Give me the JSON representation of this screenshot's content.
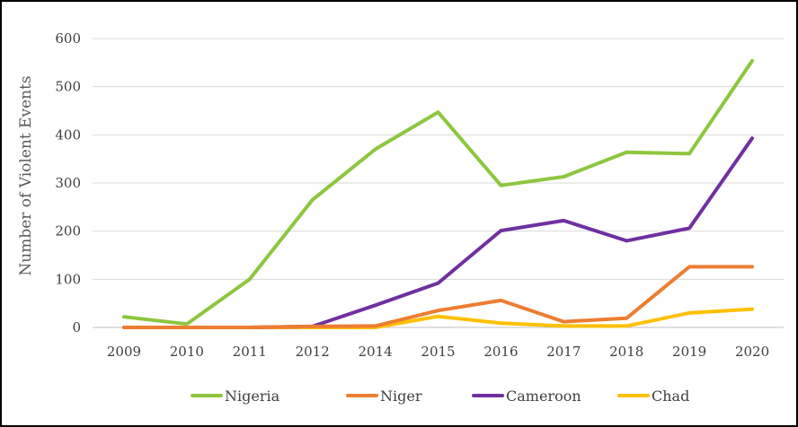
{
  "chart_data": {
    "type": "line",
    "categories": [
      "2009",
      "2010",
      "2011",
      "2012",
      "2014",
      "2015",
      "2016",
      "2017",
      "2018",
      "2019",
      "2020"
    ],
    "ylabel": "Number of Violent Events",
    "xlabel": "",
    "ylim": [
      0,
      600
    ],
    "yticks": [
      "0",
      "100",
      "200",
      "300",
      "400",
      "500",
      "600"
    ],
    "grid": true,
    "legend_position": "bottom",
    "series": [
      {
        "name": "Nigeria",
        "color": "#8DC63F",
        "values": [
          22,
          7,
          100,
          265,
          370,
          447,
          295,
          313,
          364,
          361,
          554
        ]
      },
      {
        "name": "Niger",
        "color": "#ED7D31",
        "values": [
          0,
          0,
          0,
          2,
          3,
          35,
          56,
          12,
          19,
          126,
          126
        ]
      },
      {
        "name": "Cameroon",
        "color": "#7030A0",
        "values": [
          0,
          0,
          0,
          2,
          46,
          92,
          201,
          222,
          180,
          206,
          393
        ]
      },
      {
        "name": "Chad",
        "color": "#FFC000",
        "values": [
          0,
          0,
          0,
          0,
          0,
          23,
          9,
          3,
          3,
          30,
          38
        ]
      }
    ]
  }
}
